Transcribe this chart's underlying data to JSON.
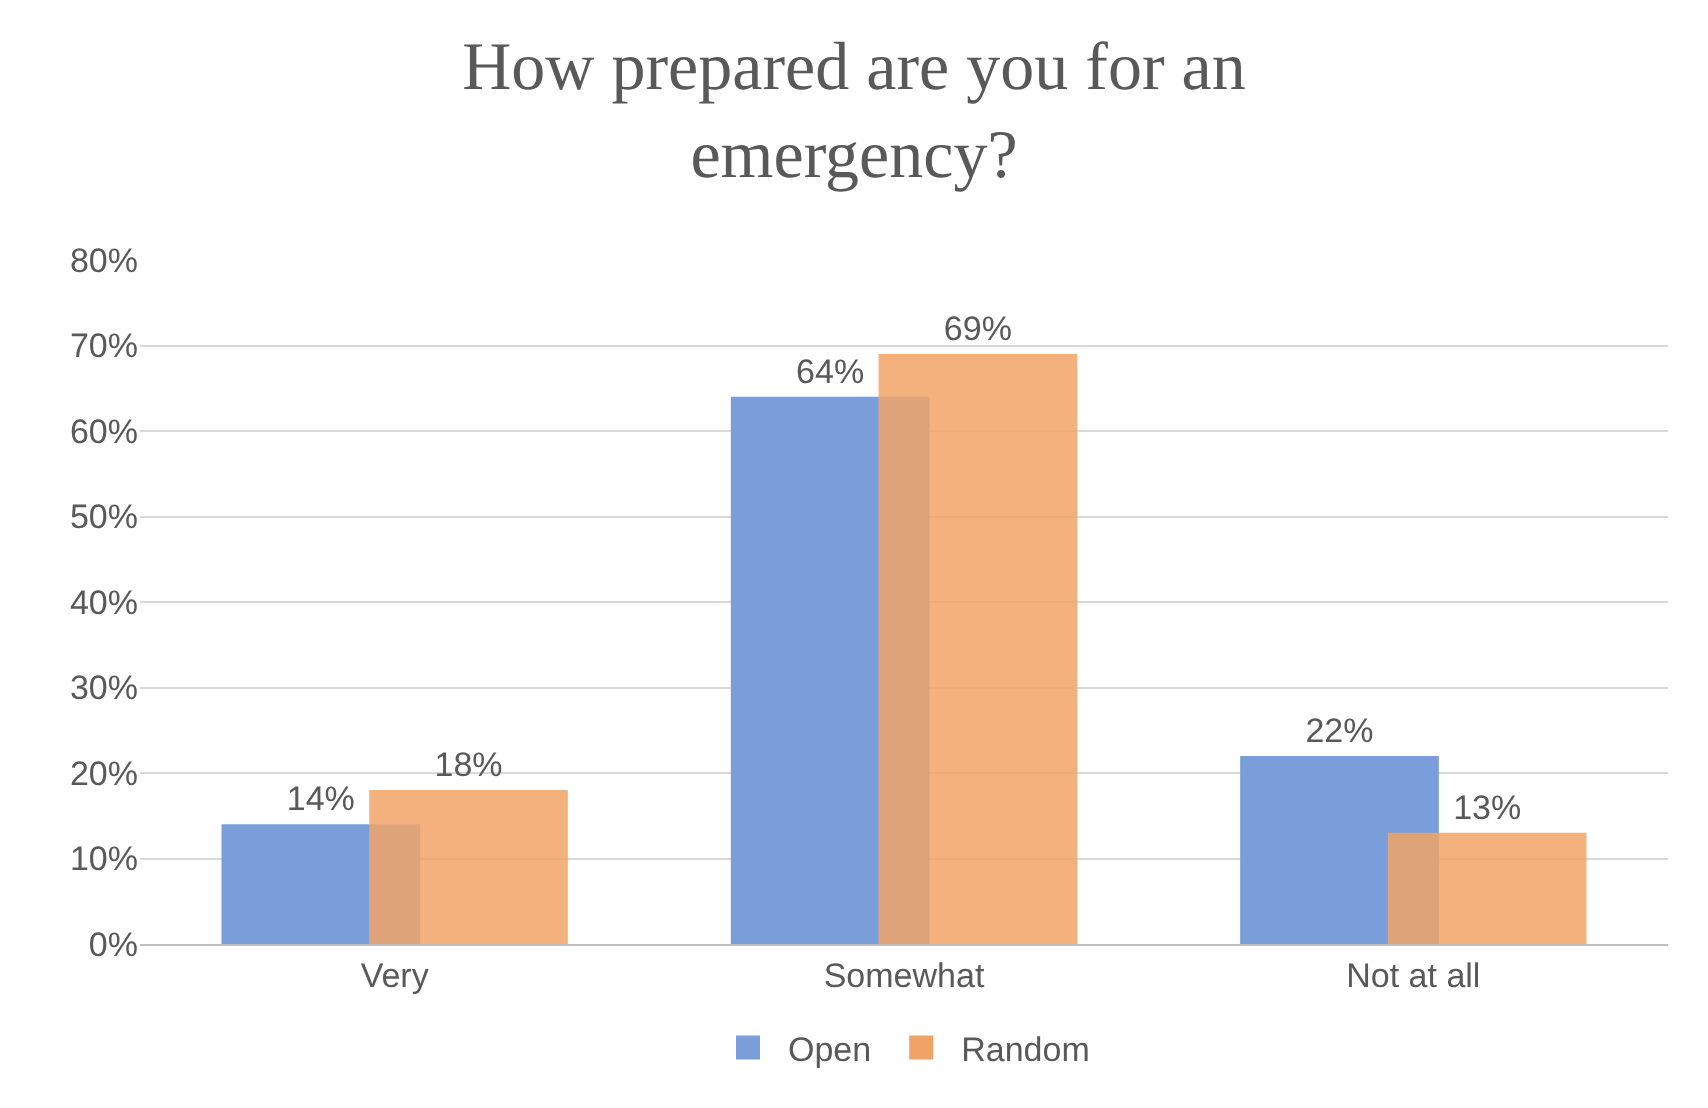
{
  "chart_data": {
    "type": "bar",
    "title": "How prepared are you for an emergency?",
    "categories": [
      "Very",
      "Somewhat",
      "Not at all"
    ],
    "series": [
      {
        "name": "Open",
        "color": "#7a9ed9",
        "values": [
          14,
          64,
          22
        ],
        "value_labels": [
          "14%",
          "64%",
          "22%"
        ]
      },
      {
        "name": "Random",
        "color": "#f0a366",
        "values": [
          18,
          69,
          13
        ],
        "value_labels": [
          "18%",
          "69%",
          "13%"
        ]
      }
    ],
    "ylim": [
      0,
      80
    ],
    "yticks": [
      {
        "value": 0,
        "label": "0%"
      },
      {
        "value": 10,
        "label": "10%"
      },
      {
        "value": 20,
        "label": "20%"
      },
      {
        "value": 30,
        "label": "30%"
      },
      {
        "value": 40,
        "label": "40%"
      },
      {
        "value": 50,
        "label": "50%"
      },
      {
        "value": 60,
        "label": "60%"
      },
      {
        "value": 70,
        "label": "70%"
      },
      {
        "value": 80,
        "label": "80%"
      }
    ],
    "grid": "y",
    "legend": "bottom"
  }
}
